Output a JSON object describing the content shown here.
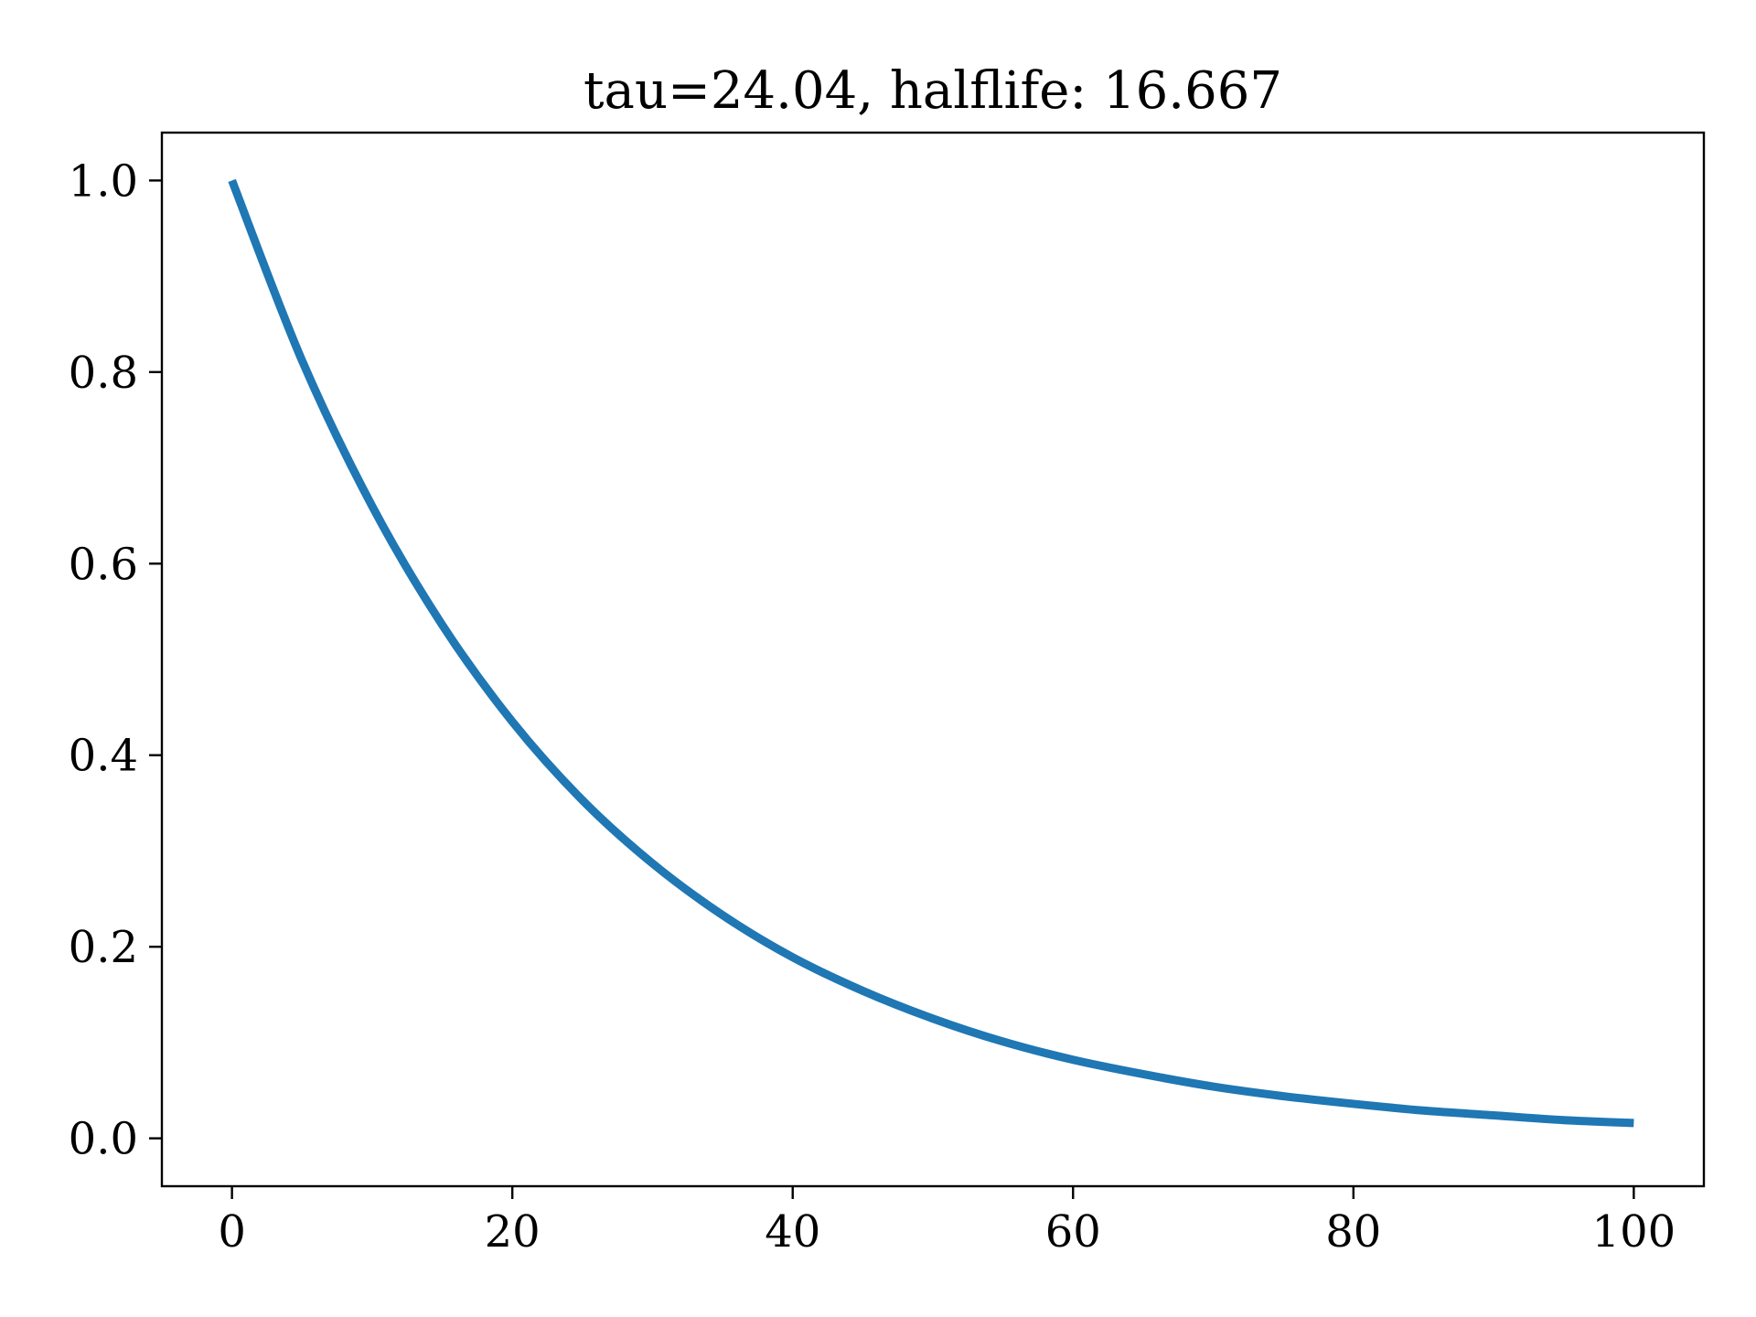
{
  "chart_data": {
    "type": "line",
    "title": "tau=24.04, halflife: 16.667",
    "xlabel": "",
    "ylabel": "",
    "xlim": [
      -5,
      105
    ],
    "ylim": [
      -0.05,
      1.05
    ],
    "x_ticks": [
      0,
      20,
      40,
      60,
      80,
      100
    ],
    "x_tick_labels": [
      "0",
      "20",
      "40",
      "60",
      "80",
      "100"
    ],
    "y_ticks": [
      0.0,
      0.2,
      0.4,
      0.6,
      0.8,
      1.0
    ],
    "y_tick_labels": [
      "0.0",
      "0.2",
      "0.4",
      "0.6",
      "0.8",
      "1.0"
    ],
    "grid": false,
    "series": [
      {
        "color": "#1f77b4",
        "x": [
          0,
          5,
          10,
          15,
          20,
          25,
          30,
          35,
          40,
          45,
          50,
          55,
          60,
          65,
          70,
          75,
          80,
          85,
          90,
          95,
          100
        ],
        "y": [
          1.0,
          0.812,
          0.66,
          0.536,
          0.435,
          0.353,
          0.287,
          0.233,
          0.189,
          0.154,
          0.125,
          0.101,
          0.082,
          0.067,
          0.054,
          0.044,
          0.036,
          0.029,
          0.024,
          0.019,
          0.016
        ]
      }
    ]
  }
}
